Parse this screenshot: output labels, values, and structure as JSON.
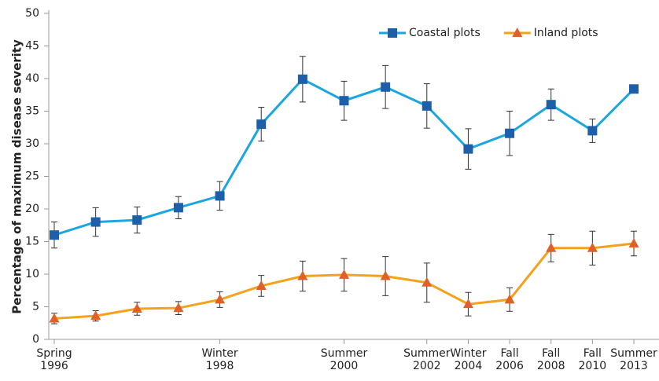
{
  "chart_data": {
    "type": "line",
    "ylabel": "Percentage of maximum disease severity",
    "categories": [
      "Spring 1996",
      null,
      null,
      null,
      "Winter 1998",
      null,
      null,
      "Summer 2000",
      null,
      "Summer 2002",
      "Winter 2004",
      "Fall 2006",
      "Fall 2008",
      "Fall 2010",
      "Summer 2013"
    ],
    "series": [
      {
        "name": "Coastal plots",
        "color": "#1aa6e0",
        "marker_color": "#1d5fa8",
        "marker": "square",
        "values": [
          16,
          18,
          18.3,
          20.2,
          22,
          33,
          39.9,
          36.6,
          38.7,
          35.8,
          29.2,
          31.6,
          36,
          32,
          38.4
        ],
        "errors": [
          2,
          2.2,
          2,
          1.7,
          2.2,
          2.6,
          3.5,
          3,
          3.3,
          3.4,
          3.1,
          3.4,
          2.4,
          1.8,
          null
        ]
      },
      {
        "name": "Inland plots",
        "color": "#f4a21b",
        "marker_color": "#e0602a",
        "marker": "triangle",
        "values": [
          3.2,
          3.6,
          4.7,
          4.8,
          6.1,
          8.2,
          9.7,
          9.9,
          9.7,
          8.7,
          5.4,
          6.1,
          14,
          14,
          14.7
        ],
        "errors": [
          0.8,
          0.8,
          1,
          1,
          1.2,
          1.6,
          2.3,
          2.5,
          3,
          3,
          1.8,
          1.8,
          2.1,
          2.6,
          1.9
        ]
      }
    ],
    "ylim": [
      0,
      50
    ],
    "yticks": [
      0,
      5,
      10,
      15,
      20,
      25,
      30,
      35,
      40,
      45,
      50
    ],
    "grid": false,
    "legend": "top-right"
  }
}
